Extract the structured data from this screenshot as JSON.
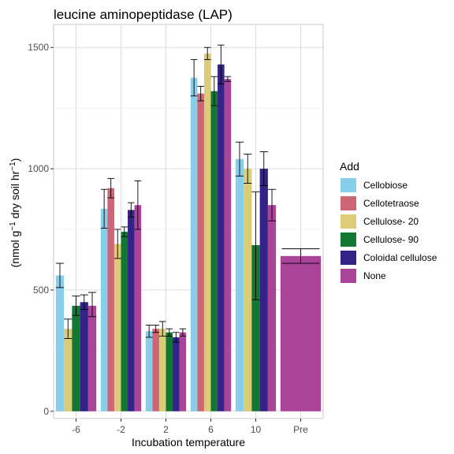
{
  "chart_data": {
    "type": "bar",
    "title": "leucine aminopeptidase (LAP)",
    "xlabel": "Incubation temperature",
    "ylabel": "(nmol g-1 dry soil hr-1)",
    "ylabel_parts": {
      "pre": "(nmol g",
      "sup1": "−1",
      "mid": " dry soil hr",
      "sup2": "−1",
      "post": ")"
    },
    "categories": [
      "-6",
      "-2",
      "2",
      "6",
      "10",
      "Pre"
    ],
    "ylim": [
      -30,
      1595
    ],
    "yticks": [
      0,
      500,
      1000,
      1500
    ],
    "ytick_labels": [
      "0",
      "500",
      "1000",
      "1500"
    ],
    "grid": true,
    "legend": {
      "title": "Add",
      "placement": "right"
    },
    "series": [
      {
        "name": "Cellobiose",
        "color": "#87CEEB",
        "values": [
          560,
          835,
          330,
          1375,
          1040,
          null
        ],
        "err_low": [
          510,
          755,
          305,
          1300,
          970,
          null
        ],
        "err_high": [
          610,
          915,
          355,
          1450,
          1110,
          null
        ]
      },
      {
        "name": "Cellotetraose",
        "color": "#CC6677",
        "values": [
          null,
          920,
          340,
          1310,
          null,
          null
        ],
        "err_low": [
          null,
          880,
          325,
          1280,
          null,
          null
        ],
        "err_high": [
          null,
          960,
          355,
          1340,
          null,
          null
        ]
      },
      {
        "name": "Cellulose- 20",
        "color": "#DDCC77",
        "values": [
          340,
          690,
          340,
          1475,
          1000,
          null
        ],
        "err_low": [
          300,
          630,
          310,
          1450,
          940,
          null
        ],
        "err_high": [
          380,
          750,
          370,
          1500,
          1060,
          null
        ]
      },
      {
        "name": "Cellulose- 90",
        "color": "#117733",
        "values": [
          435,
          740,
          325,
          1320,
          685,
          null
        ],
        "err_low": [
          395,
          720,
          310,
          1260,
          460,
          null
        ],
        "err_high": [
          475,
          760,
          340,
          1380,
          905,
          null
        ]
      },
      {
        "name": "Coloidal cellulose",
        "color": "#332288",
        "values": [
          450,
          830,
          305,
          1430,
          1000,
          null
        ],
        "err_low": [
          420,
          800,
          285,
          1350,
          930,
          null
        ],
        "err_high": [
          480,
          860,
          325,
          1510,
          1070,
          null
        ]
      },
      {
        "name": "None",
        "color": "#AA4499",
        "values": [
          435,
          850,
          325,
          1370,
          850,
          640
        ],
        "err_low": [
          390,
          750,
          310,
          1360,
          785,
          610
        ],
        "err_high": [
          490,
          950,
          340,
          1380,
          915,
          670
        ]
      }
    ]
  }
}
